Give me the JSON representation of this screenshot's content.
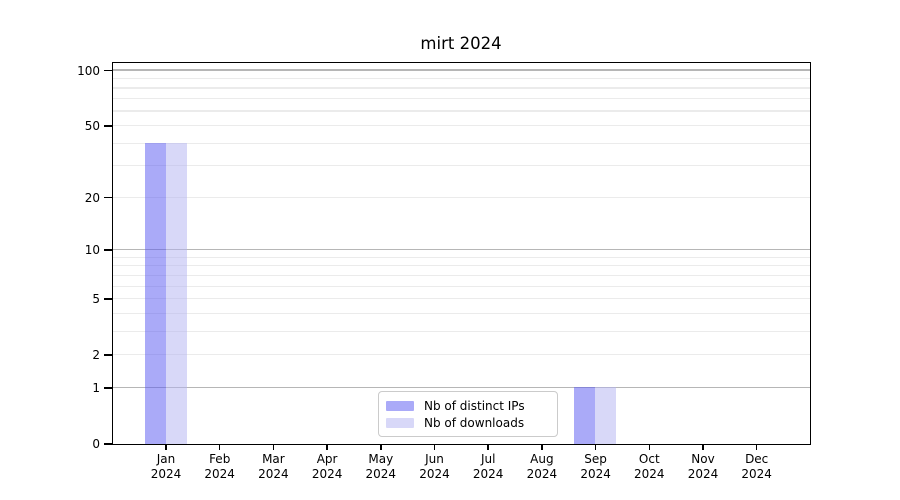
{
  "chart_data": {
    "type": "bar",
    "title": "mirt 2024",
    "categories": [
      "Jan",
      "Feb",
      "Mar",
      "Apr",
      "May",
      "Jun",
      "Jul",
      "Aug",
      "Sep",
      "Oct",
      "Nov",
      "Dec"
    ],
    "x_tick_year": "2024",
    "series": [
      {
        "name": "Nb of distinct IPs",
        "color": "#aaaaf8",
        "fill_rgba": "rgba(85,85,241,0.5)",
        "values": [
          40,
          0,
          0,
          0,
          0,
          0,
          0,
          0,
          1,
          0,
          0,
          0
        ]
      },
      {
        "name": "Nb of downloads",
        "color": "#d8d8f8",
        "fill_rgba": "rgba(177,177,241,0.5)",
        "values": [
          40,
          0,
          0,
          0,
          0,
          0,
          0,
          0,
          1,
          0,
          0,
          0
        ]
      }
    ],
    "y_scale": "log10(value+1)",
    "ylim_top_value": 110,
    "y_ticks": [
      {
        "label": "100",
        "value": 100
      },
      {
        "label": "50",
        "value": 50
      },
      {
        "label": "20",
        "value": 20
      },
      {
        "label": "10",
        "value": 10
      },
      {
        "label": "5",
        "value": 5
      },
      {
        "label": "2",
        "value": 2
      },
      {
        "label": "1",
        "value": 1
      },
      {
        "label": "0",
        "value": 0
      }
    ],
    "y_major_gridlines": [
      1,
      10,
      100
    ],
    "y_minor_gridlines": [
      2,
      3,
      4,
      5,
      6,
      7,
      8,
      9,
      20,
      30,
      40,
      50,
      60,
      70,
      80,
      90
    ],
    "grid": "on",
    "legend": {
      "position": "lower-center",
      "entries": [
        "Nb of distinct IPs",
        "Nb of downloads"
      ]
    }
  },
  "colors": {
    "background": "#ffffff",
    "axis": "#000000",
    "grid_minor": "#ebebeb",
    "grid_major": "#b6b6b6",
    "legend_border": "#cbcbcb",
    "text": "#000000"
  }
}
